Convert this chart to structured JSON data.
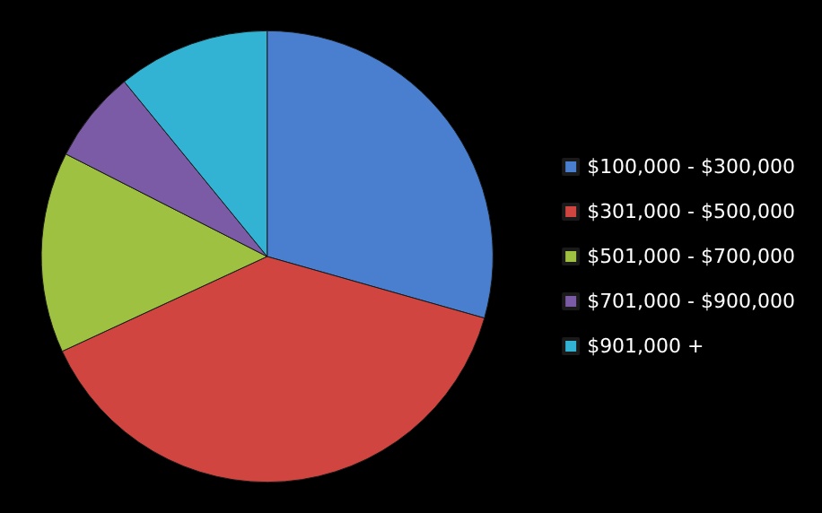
{
  "chart_data": {
    "type": "pie",
    "categories": [
      "$100,000 - $300,000",
      "$301,000 - $500,000",
      "$501,000 - $700,000",
      "$701,000 - $900,000",
      "$901,000 +"
    ],
    "values": [
      29.4,
      38.7,
      14.4,
      6.6,
      10.9
    ],
    "colors": [
      "#4a7fcf",
      "#d0453f",
      "#9fc141",
      "#7b5aa6",
      "#33b3d3"
    ],
    "legend": "right"
  }
}
